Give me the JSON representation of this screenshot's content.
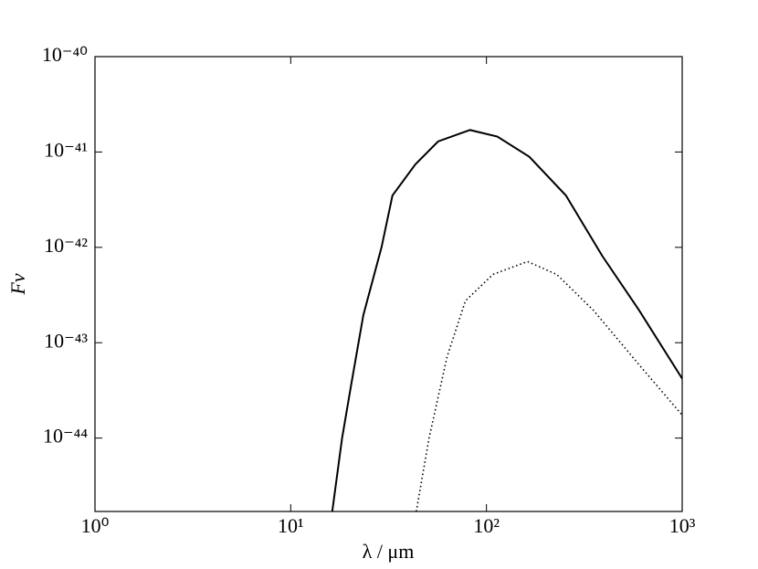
{
  "chart_data": {
    "type": "line",
    "x_label": "λ / μm",
    "y_label": "Fν",
    "xscale": "log",
    "yscale": "log",
    "xlim": [
      1,
      1000
    ],
    "xticks": [
      {
        "value": 1,
        "label": "10⁰"
      },
      {
        "value": 10,
        "label": "10¹"
      },
      {
        "value": 100,
        "label": "10²"
      },
      {
        "value": 1000,
        "label": "10³"
      }
    ],
    "ylim": [
      1.7e-45,
      1e-40
    ],
    "yticks": [
      {
        "value": 1e-44,
        "label": "10⁻⁴⁴"
      },
      {
        "value": 1e-43,
        "label": "10⁻⁴³"
      },
      {
        "value": 1e-42,
        "label": "10⁻⁴²"
      },
      {
        "value": 1e-41,
        "label": "10⁻⁴¹"
      },
      {
        "value": 1e-40,
        "label": "10⁻⁴⁰"
      }
    ],
    "series": [
      {
        "color": "#000000",
        "style": "solid",
        "x": [
          16.3,
          18.3,
          20.4,
          23.5,
          29.1,
          33.1,
          43.3,
          56.6,
          82.4,
          113.7,
          165.6,
          254.6,
          391,
          601,
          1000
        ],
        "values": [
          1.7e-45,
          1e-44,
          3.7e-44,
          1.95e-43,
          1e-42,
          3.5e-42,
          7.4e-42,
          1.29e-41,
          1.7e-41,
          1.45e-41,
          8.9e-42,
          3.5e-42,
          8.1e-43,
          2.2e-43,
          4.2e-44
        ]
      },
      {
        "color": "#000000",
        "style": "dotted",
        "x": [
          43.8,
          50.9,
          63,
          78.1,
          107.9,
          162,
          228.6,
          351,
          601,
          1000
        ],
        "values": [
          1.7e-45,
          1e-44,
          7.2e-44,
          2.75e-43,
          5.2e-43,
          7.1e-43,
          5.2e-43,
          2.2e-43,
          5.9e-44,
          1.74e-44
        ]
      }
    ]
  }
}
